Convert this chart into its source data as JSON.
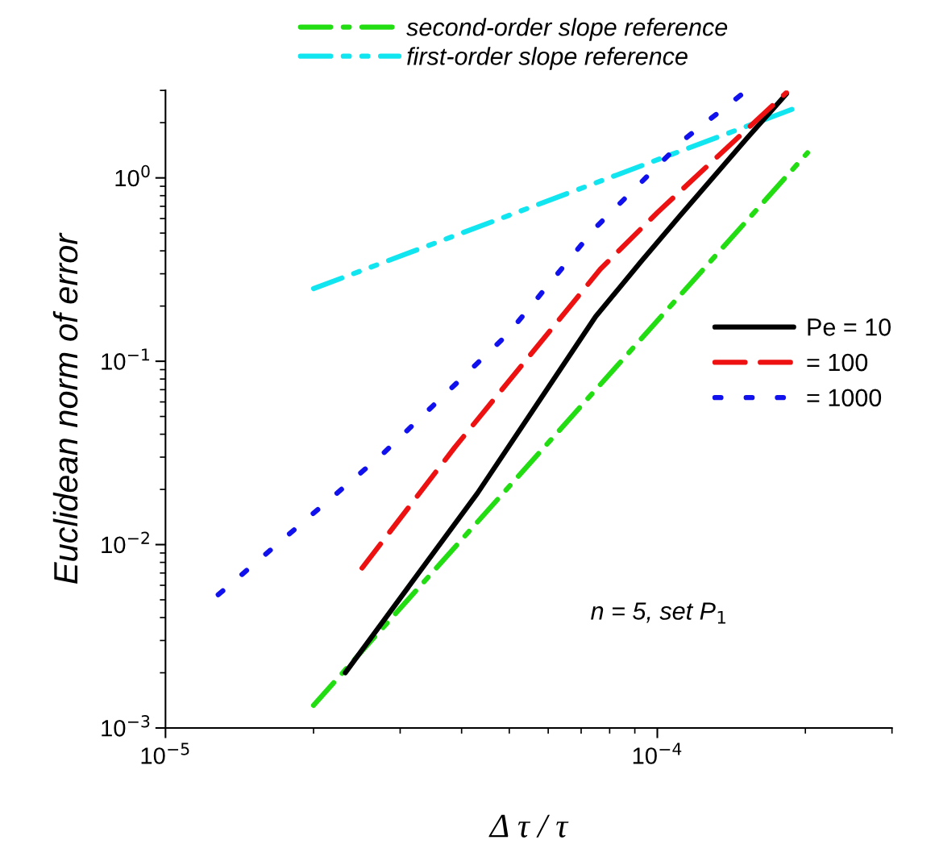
{
  "chart_data": {
    "type": "line",
    "xlabel": "Δ τ / τ",
    "ylabel": "Euclidean norm of error",
    "log": "xy",
    "xlim": [
      1e-05,
      0.0003
    ],
    "ylim": [
      0.001,
      3
    ],
    "xticks": [
      {
        "value": 1e-05,
        "label": "10$^{−5}$"
      },
      {
        "value": 0.0001,
        "label": "10$^{−4}$"
      }
    ],
    "yticks": [
      {
        "value": 0.001,
        "label": "10$^{−3}$"
      },
      {
        "value": 0.01,
        "label": "10$^{−2}$"
      },
      {
        "value": 0.1,
        "label": "10$^{−1}$"
      },
      {
        "value": 1,
        "label": "10$^{0}$"
      }
    ],
    "grid": false,
    "legend": "right",
    "marker": "none",
    "annotations": [
      "n = 5, set P$_{1}$"
    ],
    "series": [
      {
        "name": "second-order slope reference",
        "color": "#22dd11",
        "line_style": "dashdot",
        "x": [
          2e-05,
          0.000202
        ],
        "values": [
          0.00133,
          1.37
        ]
      },
      {
        "name": "first-order slope reference",
        "color": "#11e5f0",
        "line_style": "dashdotdot",
        "x": [
          2e-05,
          0.000189
        ],
        "values": [
          0.249,
          2.38
        ]
      },
      {
        "name": "Pe = 10",
        "color": "#000000",
        "line_style": "solid",
        "x": [
          2.32e-05,
          4.31e-05,
          7.49e-05,
          9.25e-05,
          0.0001115,
          0.000152,
          0.000183
        ],
        "values": [
          0.002,
          0.0191,
          0.175,
          0.348,
          0.627,
          1.64,
          2.87
        ]
      },
      {
        "name": "= 100",
        "color": "#ee1111",
        "line_style": "dashed",
        "x": [
          2.51e-05,
          3.87e-05,
          7.66e-05,
          0.0001,
          0.000183
        ],
        "values": [
          0.00745,
          0.0338,
          0.318,
          0.647,
          2.92
        ]
      },
      {
        "name": "= 1000",
        "color": "#1111ee",
        "line_style": "dotted",
        "x": [
          1.28e-05,
          2.75e-05,
          4.97e-05,
          7.49e-05,
          0.000114,
          0.000152
        ],
        "values": [
          0.00533,
          0.0308,
          0.141,
          0.536,
          1.64,
          3.0
        ]
      }
    ]
  }
}
